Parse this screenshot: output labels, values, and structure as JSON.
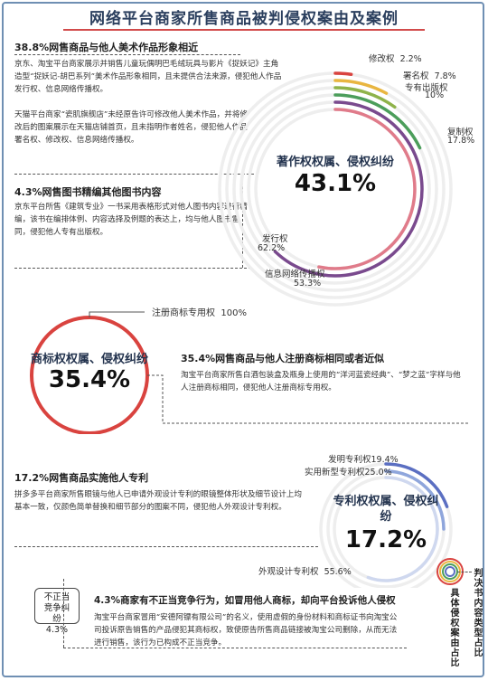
{
  "title": "网络平台商家所售商品被判侵权案由及案例",
  "sections": {
    "art": {
      "heading": "38.8%网售商品与他人美术作品形象相近",
      "text1": "京东、淘宝平台商家展示并销售儿童玩偶明巴毛绒玩具与影片《捉妖记》主角造型“捉妖记-胡巴系列”美术作品形象相同，且未提供合法来源，侵犯他人作品发行权、信息网络传播权。",
      "text2": "天猫平台商家“瓷肌旗舰店”未经原告许可修改他人美术作品，并将修改后的图案展示在天猫店铺首页，且未指明作者姓名，侵犯他人作品署名权、修改权、信息网络传播权。"
    },
    "book": {
      "heading": "4.3%网售图书精编其他图书内容",
      "text": "京东平台所售《建筑专业》一书采用表格形式对他人图书内容进行精编，该书在编排体例、内容选择及例题的表达上，均与他人图书雷同，侵犯他人专有出版权。"
    },
    "trademark": {
      "heading": "35.4%网售商品与他人注册商标相同或者近似",
      "text": "淘宝平台商家所售白酒包装盒及瓶身上使用的“洋河蓝瓷经典”、“梦之蓝”字样与他人注册商标相同，侵犯他人注册商标专用权。"
    },
    "patent": {
      "heading": "17.2%网售商品实施他人专利",
      "text": "拼多多平台商家所售眼镜与他人已申请外观设计专利的眼镜整体形状及细节设计上均基本一致，仅颜色简单替换和细节部分的图案不同，侵犯他人外观设计专利权。"
    },
    "competition": {
      "heading": "4.3%商家有不正当竞争行为，如冒用他人商标，却向平台投诉他人侵权",
      "text": "淘宝平台商家冒用“安德阿镖有限公司”的名义，使用虚假的身份材料和商标证书向淘宝公司投诉原告销售的产品侵犯其商标权，致使原告所售商品链接被淘宝公司删除，从而无法进行销售，该行为已构成不正当竞争。"
    }
  },
  "chart_data": [
    {
      "type": "pie",
      "title": "著作权权属、侵权纠纷",
      "share_label": "43.1%",
      "share": 43.1,
      "series": [
        {
          "name": "修改权",
          "label": "2.2%",
          "value": 2.2
        },
        {
          "name": "署名权",
          "label": "7.8%",
          "value": 7.8
        },
        {
          "name": "专有出版权",
          "label": "10%",
          "value": 10
        },
        {
          "name": "复制权",
          "label": "17.8%",
          "value": 17.8
        },
        {
          "name": "发行权",
          "label": "62.2%",
          "value": 62.2
        },
        {
          "name": "信息网络传播权",
          "label": "53.3%",
          "value": 53.3
        }
      ]
    },
    {
      "type": "pie",
      "title": "商标权权属、侵权纠纷",
      "share_label": "35.4%",
      "share": 35.4,
      "series": [
        {
          "name": "注册商标专用权",
          "label": "100%",
          "value": 100
        }
      ]
    },
    {
      "type": "pie",
      "title": "专利权权属、侵权纠纷",
      "share_label": "17.2%",
      "share": 17.2,
      "series": [
        {
          "name": "发明专利权",
          "label": "19.4%",
          "value": 19.4
        },
        {
          "name": "实用新型专利权",
          "label": "25.0%",
          "value": 25.0
        },
        {
          "name": "外观设计专利权",
          "label": "55.6%",
          "value": 55.6
        }
      ]
    },
    {
      "type": "pie",
      "title": "不正当竞争纠纷",
      "share_label": "4.3%",
      "share": 4.3,
      "series": []
    }
  ],
  "legend": {
    "outer": "判决书内容类型占比",
    "inner": "具体侵权案由占比"
  },
  "colors": {
    "copyright": [
      "#d9433f",
      "#e9b640",
      "#8fb34a",
      "#4c9e5b",
      "#7a4a8e",
      "#e07b8a"
    ],
    "trademark": "#d9433f",
    "patent": [
      "#5b6fc2",
      "#8fa6dc",
      "#cfd8ef"
    ],
    "legend_rings": [
      "#d9433f",
      "#e9b640",
      "#4c9e5b",
      "#5b6fc2"
    ]
  }
}
